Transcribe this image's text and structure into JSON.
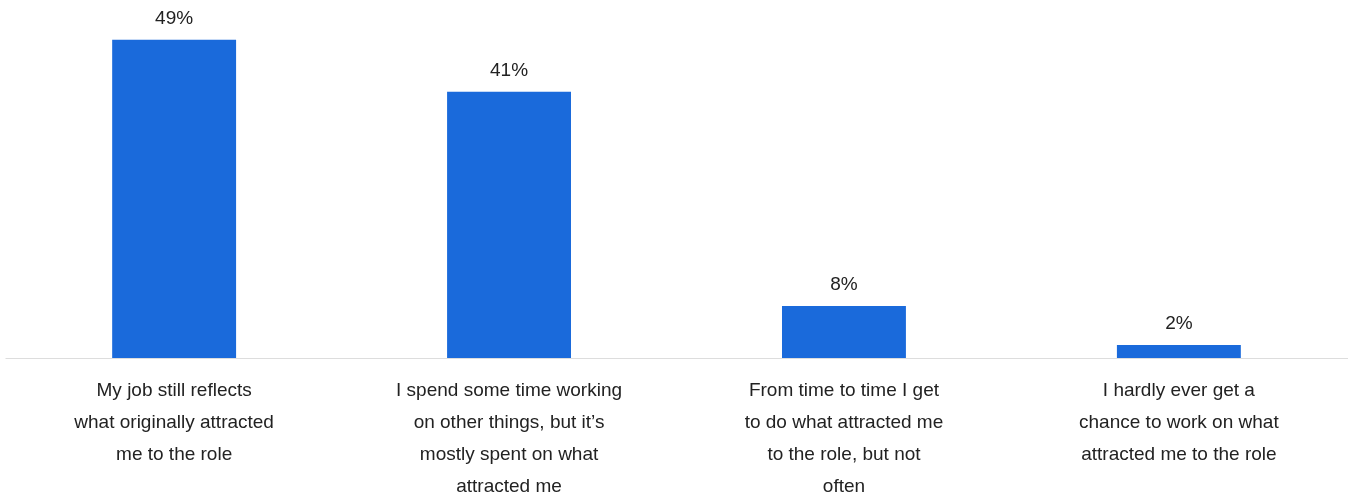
{
  "chart_data": {
    "type": "bar",
    "categories": [
      "My job still reflects what originally attracted me to the role",
      "I spend some time working on other things, but it’s mostly spent on what attracted me",
      "From time to time I get to do what attracted me to the role, but not often",
      "I hardly ever get a chance to work on what attracted me to the role"
    ],
    "values": [
      49,
      41,
      8,
      2
    ],
    "value_labels": [
      "49%",
      "41%",
      "8%",
      "2%"
    ],
    "color": "#1a6adb"
  }
}
